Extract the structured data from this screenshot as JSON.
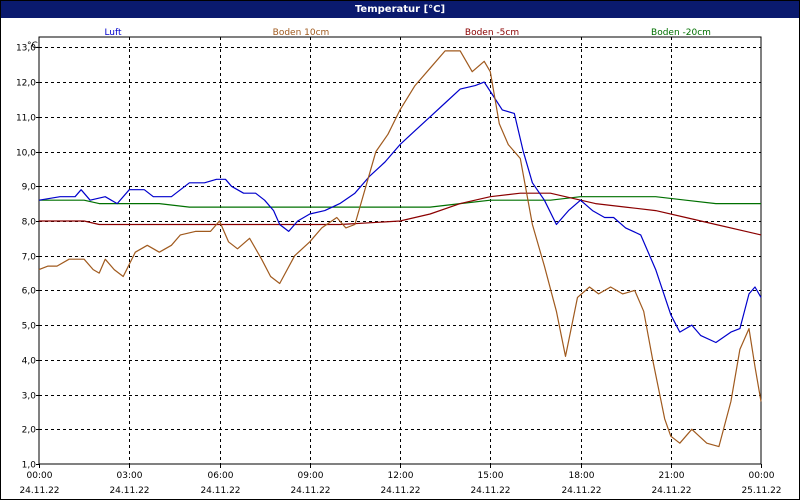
{
  "window": {
    "title": "Temperatur [°C]"
  },
  "chart_data": {
    "type": "line",
    "title": "Temperatur [°C]",
    "ylabel": "°C",
    "xlabel": "",
    "ylim": [
      1.0,
      13.3
    ],
    "xlim": [
      0,
      24
    ],
    "grid": true,
    "legend_position": "top",
    "yticks": [
      "1,0",
      "2,0",
      "3,0",
      "4,0",
      "5,0",
      "6,0",
      "7,0",
      "8,0",
      "9,0",
      "10,0",
      "11,0",
      "12,0",
      "13,0"
    ],
    "xticks": [
      {
        "time": "00:00",
        "date": "24.11.22"
      },
      {
        "time": "03:00",
        "date": "24.11.22"
      },
      {
        "time": "06:00",
        "date": "24.11.22"
      },
      {
        "time": "09:00",
        "date": "24.11.22"
      },
      {
        "time": "12:00",
        "date": "24.11.22"
      },
      {
        "time": "15:00",
        "date": "24.11.22"
      },
      {
        "time": "18:00",
        "date": "24.11.22"
      },
      {
        "time": "21:00",
        "date": "24.11.22"
      },
      {
        "time": "00:00",
        "date": "25.11.22"
      }
    ],
    "series": [
      {
        "name": "Luft",
        "color": "#0000cc",
        "points": [
          [
            0,
            8.6
          ],
          [
            0.7,
            8.7
          ],
          [
            1.2,
            8.7
          ],
          [
            1.4,
            8.9
          ],
          [
            1.7,
            8.6
          ],
          [
            2.2,
            8.7
          ],
          [
            2.6,
            8.5
          ],
          [
            3.0,
            8.9
          ],
          [
            3.5,
            8.9
          ],
          [
            3.8,
            8.7
          ],
          [
            4.4,
            8.7
          ],
          [
            5.0,
            9.1
          ],
          [
            5.5,
            9.1
          ],
          [
            5.9,
            9.2
          ],
          [
            6.2,
            9.2
          ],
          [
            6.4,
            9.0
          ],
          [
            6.8,
            8.8
          ],
          [
            7.2,
            8.8
          ],
          [
            7.5,
            8.6
          ],
          [
            7.8,
            8.3
          ],
          [
            8.0,
            7.9
          ],
          [
            8.3,
            7.7
          ],
          [
            8.6,
            8.0
          ],
          [
            9.0,
            8.2
          ],
          [
            9.5,
            8.3
          ],
          [
            10.0,
            8.5
          ],
          [
            10.5,
            8.8
          ],
          [
            11.0,
            9.3
          ],
          [
            11.5,
            9.7
          ],
          [
            12.0,
            10.2
          ],
          [
            12.5,
            10.6
          ],
          [
            13.0,
            11.0
          ],
          [
            13.5,
            11.4
          ],
          [
            14.0,
            11.8
          ],
          [
            14.5,
            11.9
          ],
          [
            14.8,
            12.0
          ],
          [
            15.1,
            11.6
          ],
          [
            15.4,
            11.2
          ],
          [
            15.8,
            11.1
          ],
          [
            16.1,
            10.0
          ],
          [
            16.4,
            9.1
          ],
          [
            16.8,
            8.6
          ],
          [
            17.2,
            7.9
          ],
          [
            17.6,
            8.3
          ],
          [
            18.0,
            8.6
          ],
          [
            18.4,
            8.3
          ],
          [
            18.8,
            8.1
          ],
          [
            19.1,
            8.1
          ],
          [
            19.5,
            7.8
          ],
          [
            20.0,
            7.6
          ],
          [
            20.5,
            6.6
          ],
          [
            21.0,
            5.3
          ],
          [
            21.3,
            4.8
          ],
          [
            21.7,
            5.0
          ],
          [
            22.0,
            4.7
          ],
          [
            22.5,
            4.5
          ],
          [
            23.0,
            4.8
          ],
          [
            23.3,
            4.9
          ],
          [
            23.6,
            5.9
          ],
          [
            23.8,
            6.1
          ],
          [
            24.0,
            5.8
          ]
        ]
      },
      {
        "name": "Boden 10cm",
        "color": "#a05a1e",
        "points": [
          [
            0,
            6.6
          ],
          [
            0.3,
            6.7
          ],
          [
            0.6,
            6.7
          ],
          [
            1.0,
            6.9
          ],
          [
            1.5,
            6.9
          ],
          [
            1.8,
            6.6
          ],
          [
            2.0,
            6.5
          ],
          [
            2.2,
            6.9
          ],
          [
            2.5,
            6.6
          ],
          [
            2.8,
            6.4
          ],
          [
            3.2,
            7.1
          ],
          [
            3.6,
            7.3
          ],
          [
            4.0,
            7.1
          ],
          [
            4.4,
            7.3
          ],
          [
            4.7,
            7.6
          ],
          [
            5.2,
            7.7
          ],
          [
            5.7,
            7.7
          ],
          [
            6.0,
            8.0
          ],
          [
            6.3,
            7.4
          ],
          [
            6.6,
            7.2
          ],
          [
            7.0,
            7.5
          ],
          [
            7.4,
            6.9
          ],
          [
            7.7,
            6.4
          ],
          [
            8.0,
            6.2
          ],
          [
            8.5,
            7.0
          ],
          [
            9.0,
            7.4
          ],
          [
            9.4,
            7.8
          ],
          [
            9.9,
            8.1
          ],
          [
            10.2,
            7.8
          ],
          [
            10.5,
            7.9
          ],
          [
            10.9,
            9.1
          ],
          [
            11.2,
            10.0
          ],
          [
            11.6,
            10.5
          ],
          [
            12.0,
            11.2
          ],
          [
            12.5,
            11.9
          ],
          [
            13.0,
            12.4
          ],
          [
            13.5,
            12.9
          ],
          [
            14.0,
            12.9
          ],
          [
            14.4,
            12.3
          ],
          [
            14.8,
            12.6
          ],
          [
            15.0,
            12.3
          ],
          [
            15.3,
            10.8
          ],
          [
            15.6,
            10.2
          ],
          [
            16.0,
            9.8
          ],
          [
            16.4,
            7.9
          ],
          [
            16.8,
            6.7
          ],
          [
            17.2,
            5.4
          ],
          [
            17.5,
            4.1
          ],
          [
            17.9,
            5.8
          ],
          [
            18.3,
            6.1
          ],
          [
            18.6,
            5.9
          ],
          [
            19.0,
            6.1
          ],
          [
            19.4,
            5.9
          ],
          [
            19.8,
            6.0
          ],
          [
            20.1,
            5.4
          ],
          [
            20.4,
            4.0
          ],
          [
            20.8,
            2.3
          ],
          [
            21.0,
            1.8
          ],
          [
            21.3,
            1.6
          ],
          [
            21.7,
            2.0
          ],
          [
            22.2,
            1.6
          ],
          [
            22.6,
            1.5
          ],
          [
            23.0,
            2.8
          ],
          [
            23.3,
            4.3
          ],
          [
            23.6,
            4.9
          ],
          [
            23.8,
            3.8
          ],
          [
            24.0,
            2.8
          ]
        ]
      },
      {
        "name": "Boden -5cm",
        "color": "#8b0000",
        "points": [
          [
            0,
            8.0
          ],
          [
            1.5,
            8.0
          ],
          [
            2.0,
            7.9
          ],
          [
            4.0,
            7.9
          ],
          [
            6.0,
            7.9
          ],
          [
            8.0,
            7.9
          ],
          [
            10.0,
            7.9
          ],
          [
            12.0,
            8.0
          ],
          [
            13.0,
            8.2
          ],
          [
            14.0,
            8.5
          ],
          [
            15.0,
            8.7
          ],
          [
            16.0,
            8.8
          ],
          [
            17.0,
            8.8
          ],
          [
            17.5,
            8.7
          ],
          [
            18.5,
            8.5
          ],
          [
            19.5,
            8.4
          ],
          [
            20.5,
            8.3
          ],
          [
            21.5,
            8.1
          ],
          [
            22.5,
            7.9
          ],
          [
            23.5,
            7.7
          ],
          [
            24.0,
            7.6
          ]
        ]
      },
      {
        "name": "Boden -20cm",
        "color": "#007000",
        "points": [
          [
            0,
            8.6
          ],
          [
            1.5,
            8.6
          ],
          [
            2.0,
            8.5
          ],
          [
            4.0,
            8.5
          ],
          [
            5.0,
            8.4
          ],
          [
            8.0,
            8.4
          ],
          [
            11.0,
            8.4
          ],
          [
            13.0,
            8.4
          ],
          [
            14.0,
            8.5
          ],
          [
            15.0,
            8.6
          ],
          [
            17.0,
            8.6
          ],
          [
            18.0,
            8.7
          ],
          [
            19.5,
            8.7
          ],
          [
            20.5,
            8.7
          ],
          [
            21.5,
            8.6
          ],
          [
            22.5,
            8.5
          ],
          [
            24.0,
            8.5
          ]
        ]
      }
    ]
  }
}
